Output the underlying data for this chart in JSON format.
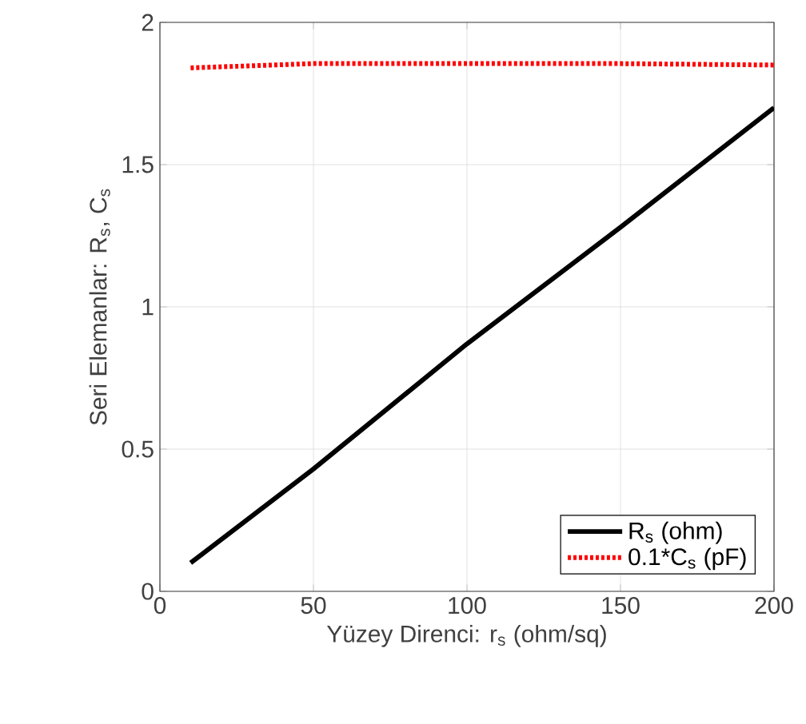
{
  "chart_data": {
    "type": "line",
    "xlabel": "Yüzey Direnci: r$_{s}$ (ohm/sq)",
    "ylabel": "Seri Elemanlar: R$_{s}$,  C$_{s}$",
    "x": [
      10,
      50,
      100,
      150,
      200
    ],
    "series": [
      {
        "name": "R$_{s}$  (ohm)",
        "color": "#000000",
        "line_style": "solid",
        "values": [
          0.1,
          0.43,
          0.87,
          1.28,
          1.7
        ]
      },
      {
        "name": "0.1*C$_{s}$ (pF)",
        "color": "#ff0000",
        "line_style": "dotted",
        "values": [
          1.84,
          1.855,
          1.855,
          1.855,
          1.85
        ]
      }
    ],
    "xlim": [
      0,
      200
    ],
    "ylim": [
      0,
      2
    ],
    "xticks": [
      0,
      50,
      100,
      150,
      200
    ],
    "yticks": [
      0,
      0.5,
      1,
      1.5,
      2
    ],
    "grid": true,
    "legend": "bottom right"
  }
}
